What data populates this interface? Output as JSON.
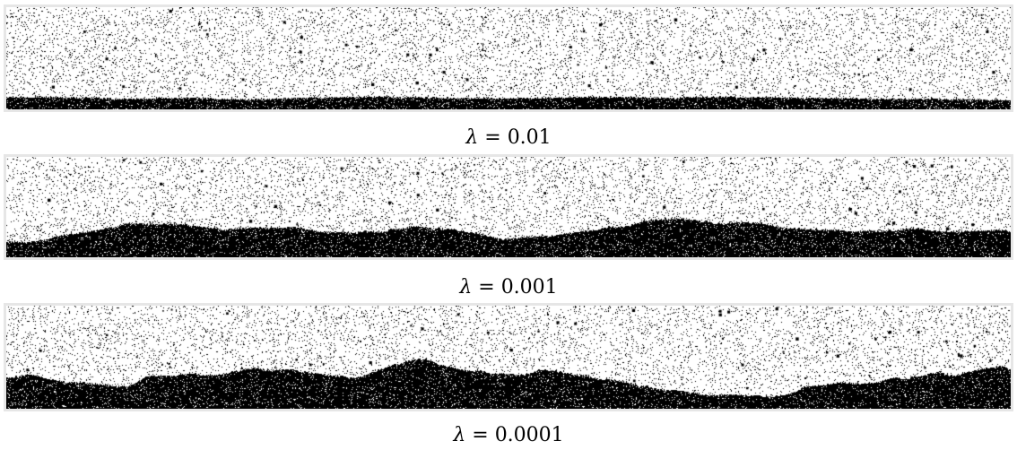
{
  "panels": [
    {
      "caption_symbol": "λ",
      "caption_rel": " = ",
      "caption_value": "0.01",
      "front_height": 0.08,
      "roughness": 0.25
    },
    {
      "caption_symbol": "λ",
      "caption_rel": " = ",
      "caption_value": "0.001",
      "front_height": 0.2,
      "roughness": 0.55
    },
    {
      "caption_symbol": "λ",
      "caption_rel": " = ",
      "caption_value": "0.0001",
      "front_height": 0.26,
      "roughness": 0.7
    }
  ],
  "colors": {
    "particle": "#000000",
    "background": "#ffffff",
    "frame": "#e6e6e6"
  }
}
